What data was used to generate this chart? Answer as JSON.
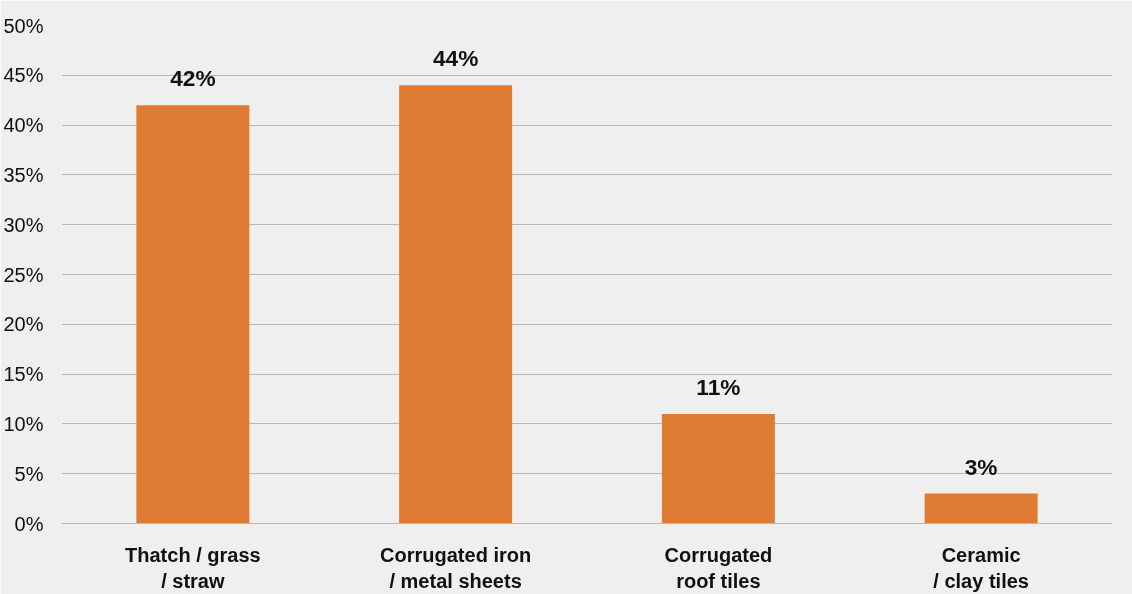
{
  "chart_data": {
    "type": "bar",
    "categories": [
      "Thatch / grass\n/ straw",
      "Corrugated iron\n/ metal sheets",
      "Corrugated\nroof tiles",
      "Ceramic\n/ clay tiles"
    ],
    "values": [
      42,
      44,
      11,
      3
    ],
    "value_labels": [
      "42%",
      "44%",
      "11%",
      "3%"
    ],
    "color": "#e07b33",
    "ylim": [
      0,
      50
    ],
    "yticks": [
      {
        "value": 0,
        "label": "0%"
      },
      {
        "value": 5,
        "label": "5%"
      },
      {
        "value": 10,
        "label": "10%"
      },
      {
        "value": 15,
        "label": "15%"
      },
      {
        "value": 20,
        "label": "20%"
      },
      {
        "value": 25,
        "label": "25%"
      },
      {
        "value": 30,
        "label": "30%"
      },
      {
        "value": 35,
        "label": "35%"
      },
      {
        "value": 40,
        "label": "40%"
      },
      {
        "value": 45,
        "label": "45%"
      },
      {
        "value": 50,
        "label": "50%"
      }
    ],
    "grid": "y"
  }
}
